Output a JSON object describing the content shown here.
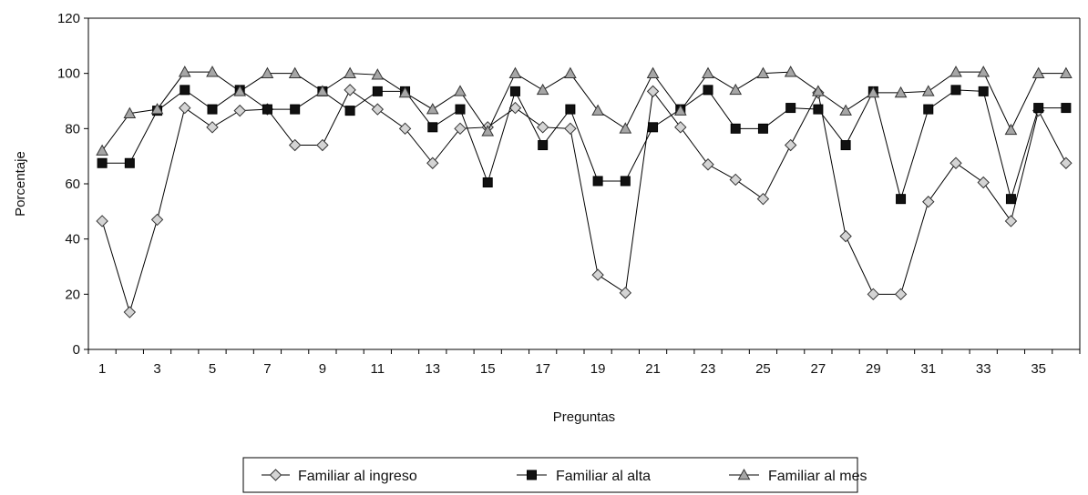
{
  "chart_data": {
    "type": "line",
    "xlabel": "Preguntas",
    "ylabel": "Porcentaje",
    "ylim": [
      0,
      120
    ],
    "yticks": [
      0,
      20,
      40,
      60,
      80,
      100,
      120
    ],
    "xlim": [
      1,
      36
    ],
    "xticks": [
      1,
      3,
      5,
      7,
      9,
      11,
      13,
      15,
      17,
      19,
      21,
      23,
      25,
      27,
      29,
      31,
      33,
      35
    ],
    "x": [
      1,
      2,
      3,
      4,
      5,
      6,
      7,
      8,
      9,
      10,
      11,
      12,
      13,
      14,
      15,
      16,
      17,
      18,
      19,
      20,
      21,
      22,
      23,
      24,
      25,
      26,
      27,
      28,
      29,
      30,
      31,
      32,
      33,
      34,
      35,
      36
    ],
    "grid": false,
    "legend_position": "bottom",
    "series": [
      {
        "name": "Familiar al ingreso",
        "marker": "diamond",
        "marker_fill": "#d4d4d4",
        "values": [
          46.5,
          13.5,
          47,
          87.5,
          80.5,
          86.5,
          87,
          74,
          74,
          94,
          87,
          80,
          67.5,
          80,
          80.5,
          87.5,
          80.5,
          80,
          27,
          20.5,
          93.5,
          80.5,
          67,
          61.5,
          54.5,
          74,
          93,
          41,
          20,
          20,
          53.5,
          67.5,
          60.5,
          46.5,
          86.5,
          67.5
        ]
      },
      {
        "name": "Familiar al alta",
        "marker": "square",
        "marker_fill": "#111111",
        "values": [
          67.5,
          67.5,
          86.5,
          94,
          87,
          94,
          87,
          87,
          93.5,
          86.5,
          93.5,
          93.5,
          80.5,
          87,
          60.5,
          93.5,
          74,
          87,
          61,
          61,
          80.5,
          87,
          94,
          80,
          80,
          87.5,
          87,
          74,
          93.5,
          54.5,
          87,
          94,
          93.5,
          54.5,
          87.5,
          87.5
        ]
      },
      {
        "name": "Familiar al mes",
        "marker": "triangle",
        "marker_fill": "#a6a6a6",
        "values": [
          72,
          85.5,
          87,
          100.5,
          100.5,
          93.5,
          100,
          100,
          93.5,
          100,
          99.5,
          93,
          87,
          93.5,
          79,
          100,
          94,
          100,
          86.5,
          80,
          100,
          86.5,
          100,
          94,
          100,
          100.5,
          93.5,
          86.5,
          93,
          93,
          93.5,
          100.5,
          100.5,
          79.5,
          100,
          100
        ]
      }
    ]
  }
}
